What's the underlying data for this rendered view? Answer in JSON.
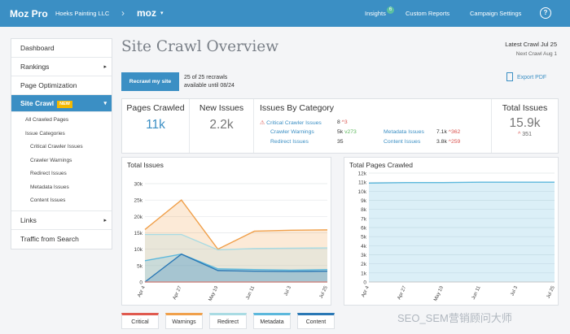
{
  "topbar": {
    "brand": "Moz Pro",
    "account": "Hoeks Painting LLC",
    "separator": "›",
    "campaign": "moz",
    "caret": "▾",
    "nav": [
      "Insights",
      "Custom Reports",
      "Campaign Settings"
    ],
    "insights_badge": "6",
    "help": "?"
  },
  "sidebar": {
    "items": [
      {
        "label": "Dashboard",
        "arrow": ""
      },
      {
        "label": "Rankings",
        "arrow": "▸"
      },
      {
        "label": "Page Optimization",
        "arrow": ""
      }
    ],
    "active": {
      "label": "Site Crawl",
      "badge": "NEW",
      "arrow": "▾"
    },
    "subitems": [
      "All Crawled Pages",
      "Issue Categories",
      "Critical Crawler Issues",
      "Crawler Warnings",
      "Redirect Issues",
      "Metadata Issues",
      "Content Issues"
    ],
    "after": [
      {
        "label": "Links",
        "arrow": "▸"
      },
      {
        "label": "Traffic from Search",
        "arrow": ""
      }
    ]
  },
  "main": {
    "title": "Site Crawl Overview",
    "latest_crawl": "Latest Crawl Jul 25",
    "next_crawl": "Next Crawl Aug 1",
    "recrawl_button": "Recrawl my site",
    "recrawl_count": "25 of 25 recrawls",
    "recrawl_until": "available until 08/24",
    "export": "Export PDF"
  },
  "stats": {
    "pages_crawled": {
      "label": "Pages Crawled",
      "value": "11k"
    },
    "new_issues": {
      "label": "New Issues",
      "value": "2.2k"
    },
    "total_issues": {
      "label": "Total Issues",
      "value": "15.9k",
      "change": "351"
    },
    "categories_label": "Issues By Category",
    "categories": [
      {
        "name": "Critical Crawler Issues",
        "value": "8",
        "change": "3",
        "dir": "up"
      },
      {
        "name": "Crawler Warnings",
        "value": "5k",
        "change": "273",
        "dir": "down"
      },
      {
        "name": "Redirect Issues",
        "value": "35",
        "change": "",
        "dir": ""
      },
      {
        "name": "Metadata Issues",
        "value": "7.1k",
        "change": "362",
        "dir": "up"
      },
      {
        "name": "Content Issues",
        "value": "3.8k",
        "change": "259",
        "dir": "up"
      }
    ]
  },
  "chart_data": [
    {
      "type": "area",
      "title": "Total Issues",
      "x": [
        "Apr 4",
        "Apr 27",
        "May 19",
        "Jun 11",
        "Jul 3",
        "Jul 25"
      ],
      "ylim": [
        0,
        30000
      ],
      "yticks": [
        "0",
        "5k",
        "10k",
        "15k",
        "20k",
        "25k",
        "30k"
      ],
      "series": [
        {
          "name": "Critical",
          "color": "#e05a4f",
          "values": [
            0,
            0,
            0,
            0,
            0,
            0
          ]
        },
        {
          "name": "Warnings",
          "color": "#f0a04b",
          "values": [
            16000,
            25000,
            10000,
            15500,
            15800,
            15900
          ]
        },
        {
          "name": "Redirect",
          "color": "#a9dbe3",
          "values": [
            14500,
            14500,
            9800,
            10200,
            10300,
            10400
          ]
        },
        {
          "name": "Metadata",
          "color": "#5cb8dc",
          "values": [
            6500,
            8500,
            4000,
            3800,
            3600,
            3800
          ]
        },
        {
          "name": "Content",
          "color": "#2a78b5",
          "values": [
            0,
            8500,
            3500,
            3300,
            3200,
            3300
          ]
        }
      ]
    },
    {
      "type": "area",
      "title": "Total Pages Crawled",
      "x": [
        "Apr 4",
        "Apr 27",
        "May 19",
        "Jun 11",
        "Jul 3",
        "Jul 25"
      ],
      "ylim": [
        0,
        12000
      ],
      "yticks": [
        "0",
        "1k",
        "2k",
        "3k",
        "4k",
        "5k",
        "6k",
        "7k",
        "8k",
        "9k",
        "10k",
        "11k",
        "12k"
      ],
      "series": [
        {
          "color": "#5cb8dc",
          "values": [
            10900,
            10950,
            10950,
            11000,
            11000,
            11000
          ]
        }
      ]
    }
  ],
  "legend": [
    "Critical",
    "Warnings",
    "Redirect",
    "Metadata",
    "Content"
  ],
  "legend_colors": [
    "#e05a4f",
    "#f0a04b",
    "#a9dbe3",
    "#5cb8dc",
    "#2a78b5"
  ],
  "watermark": "SEO_SEM营销顾问大师"
}
